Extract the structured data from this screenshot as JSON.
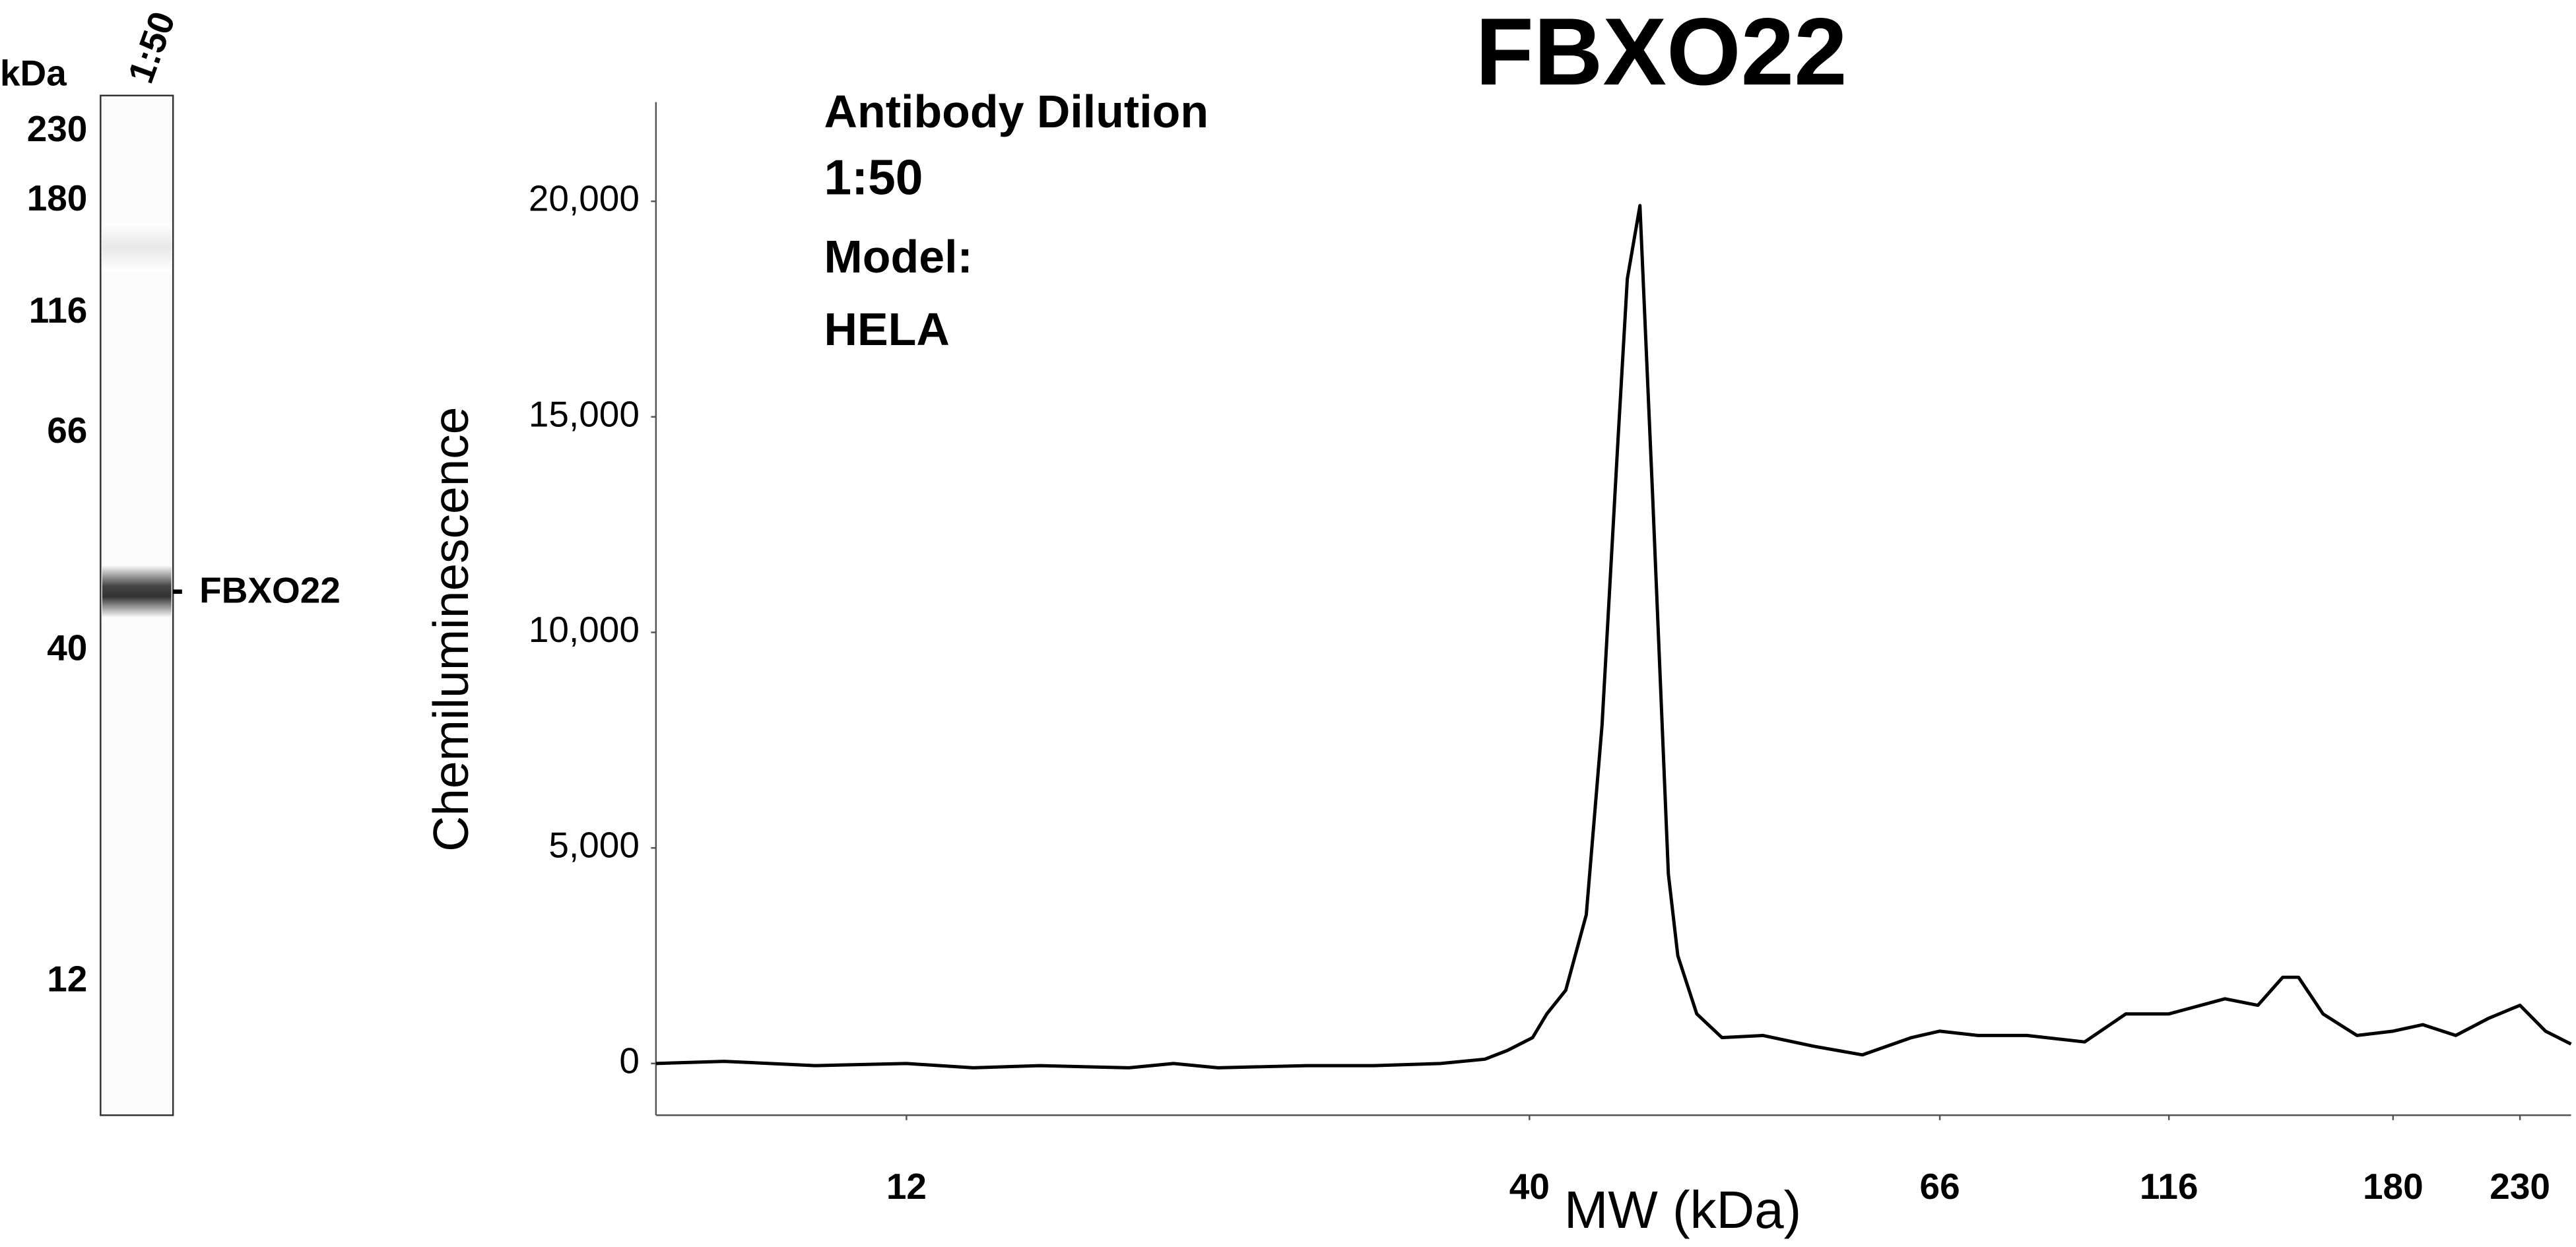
{
  "chart_data": {
    "type": "line",
    "title": "FBXO22",
    "annotations": [
      "Antibody Dilution",
      "1:50",
      "Model:",
      "HELA"
    ],
    "xlabel": "MW (kDa)",
    "ylabel": "Chemiluminescence",
    "x": [
      1,
      4,
      8,
      12,
      15,
      18,
      22,
      24,
      26,
      30,
      33,
      36,
      38,
      39,
      40.2,
      41.1,
      42.3,
      43.6,
      44.6,
      45.6,
      46.2,
      47.0,
      47.8,
      48.8,
      49.4,
      50.6,
      52.2,
      54.8,
      58,
      61.1,
      64.2,
      66,
      74.3,
      85,
      97.6,
      106.6,
      116,
      132,
      141.4,
      148.5,
      153,
      160,
      169.7,
      180,
      191.7,
      204.7,
      217.7,
      230,
      240,
      250
    ],
    "values": [
      0,
      50,
      -50,
      0,
      -100,
      -50,
      -100,
      0,
      -100,
      -50,
      -50,
      0,
      100,
      300,
      600,
      1150,
      1700,
      3450,
      7850,
      14400,
      18200,
      19900,
      13200,
      4400,
      2500,
      1150,
      600,
      650,
      400,
      200,
      600,
      750,
      650,
      650,
      500,
      1150,
      1150,
      1500,
      1350,
      2000,
      2000,
      1150,
      650,
      750,
      900,
      650,
      1050,
      1350,
      750,
      450
    ],
    "color": "#000000",
    "xlim": [
      1,
      250
    ],
    "xticks": [
      12,
      40,
      66,
      116,
      180,
      230
    ],
    "ylim": [
      -1200,
      22300
    ],
    "yticks": [
      0,
      {
        "value": 5000,
        "label": "5,000"
      },
      {
        "value": 10000,
        "label": "10,000"
      },
      {
        "value": 15000,
        "label": "15,000"
      },
      {
        "value": 20000,
        "label": "20,000"
      }
    ],
    "grid": false
  },
  "gel": {
    "unit": "kDa",
    "lane": "1:50",
    "markers": [
      "230",
      "180",
      "116",
      "66",
      "40",
      "12"
    ],
    "band_label": "FBXO22"
  }
}
